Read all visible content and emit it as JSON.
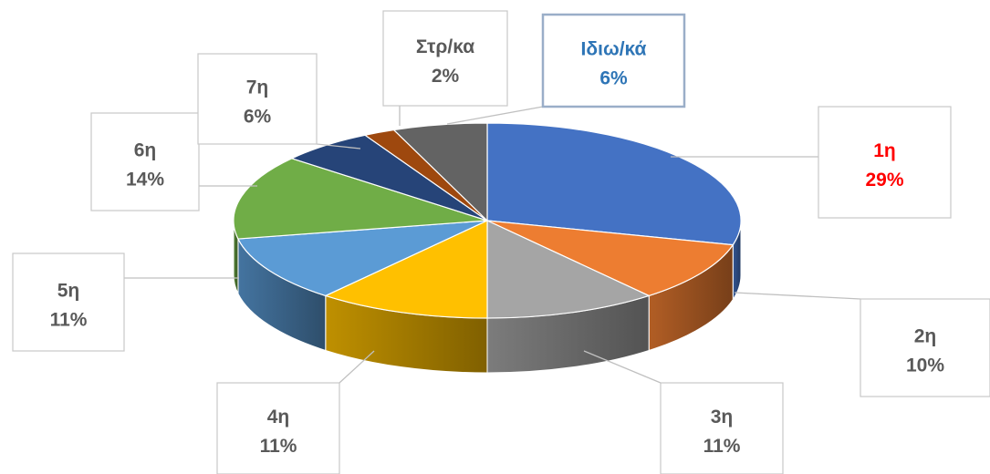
{
  "chart_data": {
    "type": "pie",
    "title": "",
    "style": "3d-exploded-depth",
    "slices": [
      {
        "label": "1η",
        "percent_label": "29%",
        "value": 29,
        "color": "#4472c4",
        "label_color": "#ff0000"
      },
      {
        "label": "2η",
        "percent_label": "10%",
        "value": 10,
        "color": "#ed7d31",
        "label_color": "#595959"
      },
      {
        "label": "3η",
        "percent_label": "11%",
        "value": 11,
        "color": "#a5a5a5",
        "label_color": "#595959"
      },
      {
        "label": "4η",
        "percent_label": "11%",
        "value": 11,
        "color": "#ffc000",
        "label_color": "#595959"
      },
      {
        "label": "5η",
        "percent_label": "11%",
        "value": 11,
        "color": "#5b9bd5",
        "label_color": "#595959"
      },
      {
        "label": "6η",
        "percent_label": "14%",
        "value": 14,
        "color": "#70ad47",
        "label_color": "#595959"
      },
      {
        "label": "7η",
        "percent_label": "6%",
        "value": 6,
        "color": "#264478",
        "label_color": "#595959"
      },
      {
        "label": "Στρ/κα",
        "percent_label": "2%",
        "value": 2,
        "color": "#9e480e",
        "label_color": "#595959"
      },
      {
        "label": "Ιδιω/κά",
        "percent_label": "6%",
        "value": 6,
        "color": "#636363",
        "label_color": "#2e75b6"
      }
    ]
  }
}
